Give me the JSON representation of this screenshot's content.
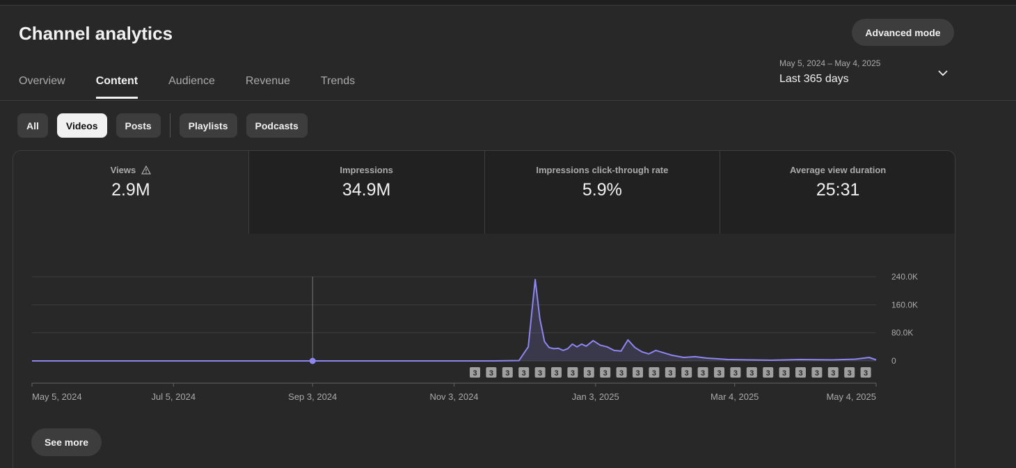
{
  "page": {
    "title": "Channel analytics",
    "advanced_mode_label": "Advanced mode"
  },
  "tabs": [
    {
      "label": "Overview",
      "active": false
    },
    {
      "label": "Content",
      "active": true
    },
    {
      "label": "Audience",
      "active": false
    },
    {
      "label": "Revenue",
      "active": false
    },
    {
      "label": "Trends",
      "active": false
    }
  ],
  "date_picker": {
    "range": "May 5, 2024 – May 4, 2025",
    "label": "Last 365 days",
    "icon": "chevron-down-icon"
  },
  "chips": [
    {
      "label": "All",
      "selected": false
    },
    {
      "label": "Videos",
      "selected": true
    },
    {
      "label": "Posts",
      "selected": false
    },
    {
      "label": "Playlists",
      "selected": false
    },
    {
      "label": "Podcasts",
      "selected": false
    }
  ],
  "metrics": [
    {
      "label": "Views",
      "value": "2.9M",
      "icon": "warning-icon",
      "active": true
    },
    {
      "label": "Impressions",
      "value": "34.9M",
      "active": false
    },
    {
      "label": "Impressions click-through rate",
      "value": "5.9%",
      "active": false
    },
    {
      "label": "Average view duration",
      "value": "25:31",
      "active": false
    }
  ],
  "see_more_label": "See more",
  "colors": {
    "line": "#8f87f1",
    "background": "#282828",
    "marker_bg": "#a0a0a0"
  },
  "chart_data": {
    "type": "area",
    "x_tick_labels": [
      "May 5, 2024",
      "Jul 5, 2024",
      "Sep 3, 2024",
      "Nov 3, 2024",
      "Jan 3, 2025",
      "Mar 4, 2025",
      "May 4, 2025"
    ],
    "y_tick_labels": [
      "240.0K",
      "160.0K",
      "80.0K",
      "0"
    ],
    "ylim": [
      0,
      240000
    ],
    "grid": true,
    "event_marker_label": "3",
    "event_marker_count": 25,
    "series": [
      {
        "x": [
          "2024-05-05",
          "2024-06-01",
          "2024-07-01",
          "2024-08-01",
          "2024-09-03",
          "2024-10-01",
          "2024-11-03",
          "2024-11-20",
          "2024-12-01",
          "2024-12-05",
          "2024-12-08",
          "2024-12-10",
          "2024-12-12",
          "2024-12-14",
          "2024-12-16",
          "2024-12-18",
          "2024-12-20",
          "2024-12-22",
          "2024-12-24",
          "2024-12-26",
          "2024-12-28",
          "2024-12-30",
          "2025-01-02",
          "2025-01-05",
          "2025-01-08",
          "2025-01-11",
          "2025-01-14",
          "2025-01-17",
          "2025-01-20",
          "2025-01-23",
          "2025-01-26",
          "2025-01-29",
          "2025-02-01",
          "2025-02-05",
          "2025-02-10",
          "2025-02-15",
          "2025-02-20",
          "2025-02-25",
          "2025-03-01",
          "2025-03-10",
          "2025-03-20",
          "2025-04-01",
          "2025-04-15",
          "2025-04-25",
          "2025-05-01",
          "2025-05-04"
        ],
        "y": [
          0,
          0,
          0,
          0,
          0,
          0,
          0,
          0,
          1000,
          40000,
          232000,
          120000,
          55000,
          38000,
          35000,
          36000,
          30000,
          35000,
          48000,
          40000,
          48000,
          42000,
          58000,
          45000,
          40000,
          30000,
          28000,
          60000,
          38000,
          26000,
          20000,
          30000,
          24000,
          16000,
          10000,
          12000,
          8000,
          6000,
          4000,
          3000,
          2000,
          4000,
          3000,
          5000,
          10000,
          3000
        ]
      }
    ],
    "hover_point": {
      "x": "2024-09-03",
      "y": 0
    }
  }
}
